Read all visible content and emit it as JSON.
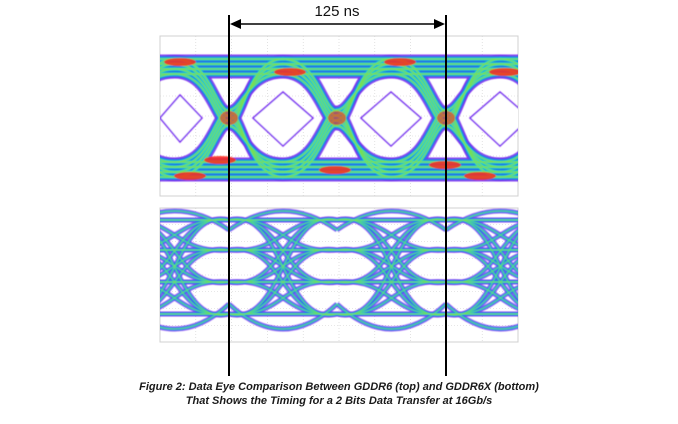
{
  "figure": {
    "timing_label": "125 ns",
    "caption_line1": "Figure 2: Data Eye Comparison Between GDDR6 (top) and GDDR6X (bottom)",
    "caption_line2": "That Shows the Timing for a 2 Bits Data Transfer at 16Gb/s"
  },
  "plots": [
    {
      "name": "GDDR6",
      "position": "top",
      "signal": "NRZ"
    },
    {
      "name": "GDDR6X",
      "position": "bottom",
      "signal": "PAM4"
    }
  ],
  "colors": {
    "density_low": "#7a2cf0",
    "density_mid_low": "#1f6fe8",
    "density_mid": "#24d3c7",
    "density_mid_high": "#7ee04a",
    "density_high": "#ff2a1a",
    "grid": "#cfcfcf",
    "marker": "#000000"
  }
}
